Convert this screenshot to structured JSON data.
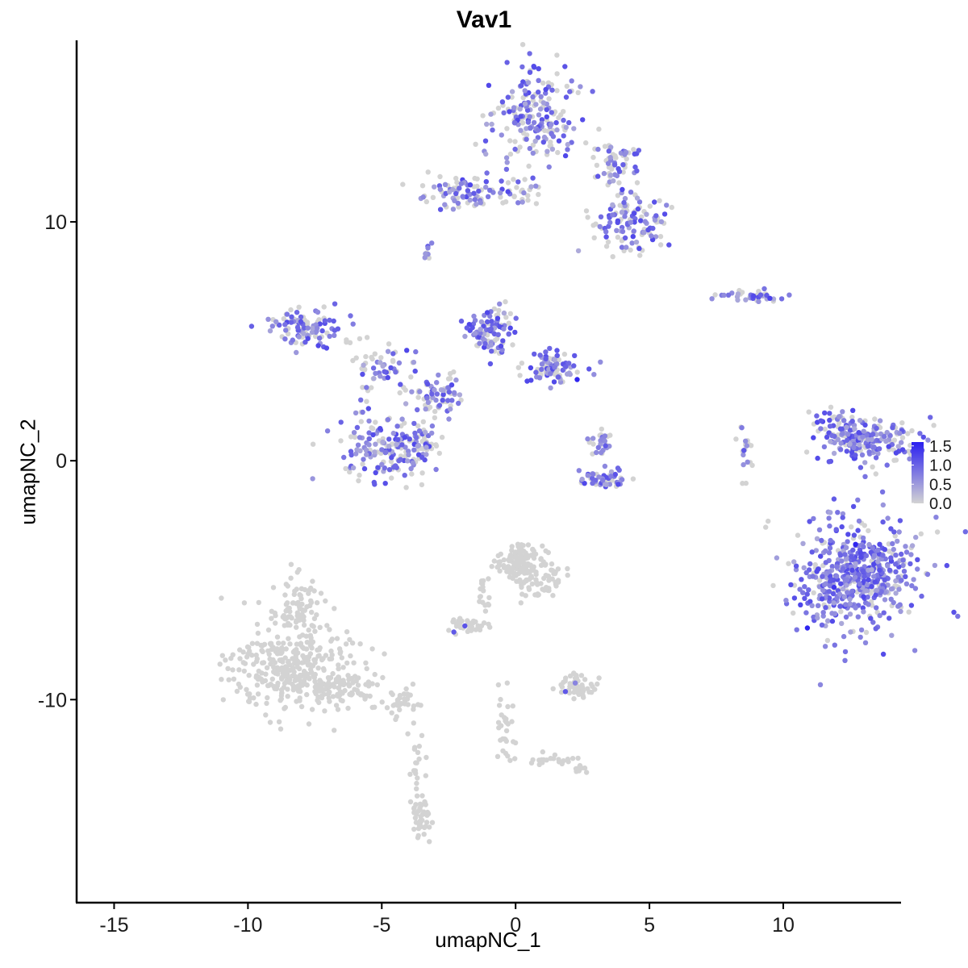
{
  "chart_data": {
    "type": "scatter",
    "title": "Vav1",
    "xlabel": "umapNC_1",
    "ylabel": "umapNC_2",
    "xlim": [
      -16.4,
      14.4
    ],
    "ylim": [
      -18.5,
      17.6
    ],
    "x_ticks": [
      -15,
      -10,
      -5,
      0,
      5,
      10
    ],
    "x_tick_labels": [
      "-15",
      "-10",
      "-5",
      "0",
      "5",
      "10"
    ],
    "y_ticks": [
      -10,
      0,
      10
    ],
    "y_tick_labels": [
      "-10",
      "0",
      "10"
    ],
    "grid": false,
    "color_scale": {
      "low_color": "#d3d3d3",
      "high_color": "#2a1ff0",
      "min": 0.0,
      "max": 1.6,
      "breaks": [
        0.0,
        0.5,
        1.0,
        1.5
      ],
      "break_labels": [
        "0.0",
        "0.5",
        "1.0",
        "1.5"
      ],
      "legend_position": "right"
    },
    "clusters": [
      {
        "cx": 12.7,
        "cy": -4.9,
        "sx": 0.58,
        "sy": 0.6,
        "n": 240,
        "expr": 0.85
      },
      {
        "cx": 12.6,
        "cy": -4.9,
        "sx": 0.33,
        "sy": 0.29,
        "n": 110,
        "expr": 0.9
      },
      {
        "cx": 13.2,
        "cy": -4.6,
        "sx": 0.48,
        "sy": 0.5,
        "n": 120,
        "expr": 0.75
      },
      {
        "cx": 12.0,
        "cy": -5.5,
        "sx": 0.29,
        "sy": 0.29,
        "n": 60,
        "expr": 0.7
      },
      {
        "cx": 13.2,
        "cy": 0.9,
        "sx": 0.42,
        "sy": 0.22,
        "n": 170,
        "expr": 0.65
      },
      {
        "cx": 12.4,
        "cy": 0.9,
        "sx": 0.25,
        "sy": 0.18,
        "n": 50,
        "expr": 0.65
      },
      {
        "cx": 12.2,
        "cy": 1.8,
        "sx": 0.17,
        "sy": 0.12,
        "n": 20,
        "expr": 0.65
      },
      {
        "cx": 0.7,
        "cy": 14.4,
        "sx": 0.34,
        "sy": 0.5,
        "n": 200,
        "expr": 0.62
      },
      {
        "cx": 4.2,
        "cy": 9.9,
        "sx": 0.33,
        "sy": 0.33,
        "n": 120,
        "expr": 0.6
      },
      {
        "cx": 3.7,
        "cy": 12.5,
        "sx": 0.2,
        "sy": 0.2,
        "n": 60,
        "expr": 0.45
      },
      {
        "cx": -2.0,
        "cy": 11.2,
        "sx": 0.38,
        "sy": 0.16,
        "n": 80,
        "expr": 0.6
      },
      {
        "cx": 0.0,
        "cy": 11.2,
        "sx": 0.18,
        "sy": 0.11,
        "n": 25,
        "expr": 0.4
      },
      {
        "cx": -7.9,
        "cy": 5.6,
        "sx": 0.33,
        "sy": 0.21,
        "n": 100,
        "expr": 0.65
      },
      {
        "cx": -0.9,
        "cy": 5.4,
        "sx": 0.17,
        "sy": 0.23,
        "n": 100,
        "expr": 0.65
      },
      {
        "cx": 1.4,
        "cy": 3.9,
        "sx": 0.21,
        "sy": 0.13,
        "n": 90,
        "expr": 0.65
      },
      {
        "cx": -3.0,
        "cy": 2.7,
        "sx": 0.25,
        "sy": 0.25,
        "n": 70,
        "expr": 0.55
      },
      {
        "cx": -5.0,
        "cy": 3.9,
        "sx": 0.29,
        "sy": 0.25,
        "n": 60,
        "expr": 0.55
      },
      {
        "cx": -5.0,
        "cy": 0.5,
        "sx": 0.38,
        "sy": 0.33,
        "n": 160,
        "expr": 0.62
      },
      {
        "cx": -3.4,
        "cy": 0.8,
        "sx": 0.17,
        "sy": 0.17,
        "n": 40,
        "expr": 0.55
      },
      {
        "cx": 3.2,
        "cy": 0.8,
        "sx": 0.1,
        "sy": 0.15,
        "n": 30,
        "expr": 0.55
      },
      {
        "cx": 3.3,
        "cy": -0.8,
        "sx": 0.21,
        "sy": 0.08,
        "n": 50,
        "expr": 0.75
      },
      {
        "cx": 8.7,
        "cy": 6.9,
        "sx": 0.33,
        "sy": 0.05,
        "n": 40,
        "expr": 0.55
      },
      {
        "cx": -3.3,
        "cy": 8.7,
        "sx": 0.06,
        "sy": 0.07,
        "n": 8,
        "expr": 0.6
      },
      {
        "cx": 8.6,
        "cy": 0.2,
        "sx": 0.06,
        "sy": 0.35,
        "n": 20,
        "expr": 0.3
      },
      {
        "cx": -8.4,
        "cy": -8.7,
        "sx": 0.5,
        "sy": 0.42,
        "n": 320,
        "expr": 0.0
      },
      {
        "cx": -8.2,
        "cy": -6.2,
        "sx": 0.21,
        "sy": 0.33,
        "n": 80,
        "expr": 0.0
      },
      {
        "cx": -6.5,
        "cy": -9.5,
        "sx": 0.38,
        "sy": 0.15,
        "n": 90,
        "expr": 0.0
      },
      {
        "cx": -4.3,
        "cy": -10.2,
        "sx": 0.17,
        "sy": 0.15,
        "n": 30,
        "expr": 0.0
      },
      {
        "cx": -3.7,
        "cy": -12.9,
        "sx": 0.06,
        "sy": 0.63,
        "n": 30,
        "expr": 0.0
      },
      {
        "cx": -3.5,
        "cy": -14.9,
        "sx": 0.08,
        "sy": 0.21,
        "n": 35,
        "expr": 0.0
      },
      {
        "cx": 0.0,
        "cy": -4.2,
        "sx": 0.17,
        "sy": 0.17,
        "n": 90,
        "expr": 0.02
      },
      {
        "cx": 0.8,
        "cy": -4.8,
        "sx": 0.21,
        "sy": 0.21,
        "n": 90,
        "expr": 0.03
      },
      {
        "cx": -1.8,
        "cy": -6.9,
        "sx": 0.15,
        "sy": 0.07,
        "n": 35,
        "expr": 0.03
      },
      {
        "cx": -1.2,
        "cy": -5.5,
        "sx": 0.08,
        "sy": 0.35,
        "n": 20,
        "expr": 0.0
      },
      {
        "cx": 2.3,
        "cy": -9.4,
        "sx": 0.15,
        "sy": 0.1,
        "n": 55,
        "expr": 0.03
      },
      {
        "cx": -0.4,
        "cy": -11.0,
        "sx": 0.08,
        "sy": 0.42,
        "n": 30,
        "expr": 0.0
      },
      {
        "cx": 1.4,
        "cy": -12.5,
        "sx": 0.21,
        "sy": 0.06,
        "n": 20,
        "expr": 0.0
      },
      {
        "cx": 2.4,
        "cy": -12.9,
        "sx": 0.06,
        "sy": 0.05,
        "n": 8,
        "expr": 0.0
      }
    ],
    "high_points": [
      {
        "x": 12.7,
        "y": -3.5,
        "value": 1.55
      },
      {
        "x": 11.9,
        "y": -5.3,
        "value": 1.4
      },
      {
        "x": 10.9,
        "y": -7.0,
        "value": 1.55
      },
      {
        "x": 13.6,
        "y": -3.5,
        "value": 1.2
      },
      {
        "x": 2.3,
        "y": 3.4,
        "value": 1.55
      },
      {
        "x": 9.5,
        "y": 6.8,
        "value": 1.3
      },
      {
        "x": 2.2,
        "y": 4.4,
        "value": 1.1
      }
    ]
  }
}
